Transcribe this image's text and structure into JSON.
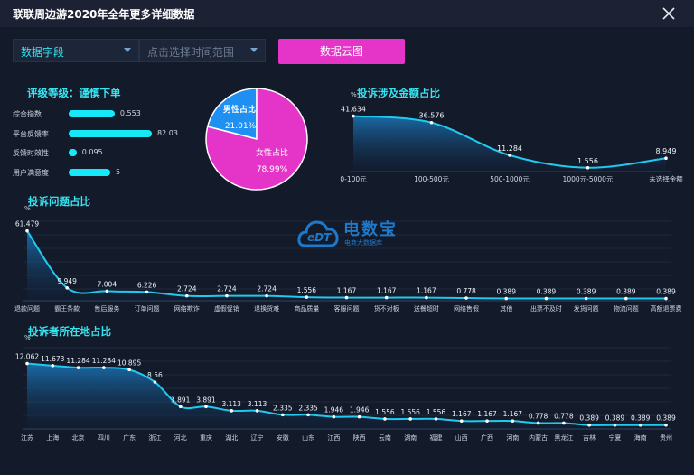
{
  "window": {
    "title": "联联周边游2020年全年更多详细数据"
  },
  "filters": {
    "field_select": "数据字段",
    "time_select_placeholder": "点击选择时间范围",
    "cloud_button": "数据云图"
  },
  "rating": {
    "title": "评级等级：谨慎下单",
    "items": [
      {
        "label": "综合指数",
        "value": "0.553",
        "fraction": 0.553
      },
      {
        "label": "平台反馈率",
        "value": "82.03",
        "fraction": 1.0
      },
      {
        "label": "反馈时效性",
        "value": "0.095",
        "fraction": 0.095
      },
      {
        "label": "用户满意度",
        "value": "5",
        "fraction": 0.5
      }
    ]
  },
  "gender": {
    "male_label": "男性占比",
    "male_value": "21.01%",
    "female_label": "女性占比",
    "female_value": "78.99%",
    "male_percent": 21.01,
    "female_percent": 78.99
  },
  "watermark": {
    "logo_text": "eDT",
    "brand": "电数宝",
    "sub": "电商大数据库"
  },
  "colors": {
    "accent": "#36e3f0",
    "button": "#e535c8",
    "pie_male": "#1f8ff2",
    "pie_female": "#e535c8"
  },
  "chart_data": [
    {
      "type": "area",
      "title": "投诉涉及金额占比",
      "ylabel": "%",
      "categories": [
        "0-100元",
        "100-500元",
        "500-1000元",
        "1000元-5000元",
        "未选择金额"
      ],
      "labels": [
        "41.634",
        "36.576",
        "11.284",
        "1.556",
        "8.949"
      ],
      "values": [
        41.634,
        36.576,
        11.284,
        1.556,
        8.949
      ]
    },
    {
      "type": "area",
      "title": "投诉问题占比",
      "ylabel": "%",
      "categories": [
        "退款问题",
        "霸王条款",
        "售后服务",
        "订单问题",
        "网络欺诈",
        "虚假促销",
        "退换货难",
        "商品质量",
        "客服问题",
        "货不对板",
        "送餐超时",
        "网络售假",
        "其他",
        "出票不及时",
        "发货问题",
        "物流问题",
        "高额退票费"
      ],
      "labels": [
        "61.479",
        "9.949",
        "7.004",
        "6.226",
        "2.724",
        "2.724",
        "2.724",
        "1.556",
        "1.167",
        "1.167",
        "1.167",
        "0.778",
        "0.389",
        "0.389",
        "0.389",
        "0.389",
        "0.389"
      ],
      "values": [
        61.479,
        9.949,
        7.004,
        6.226,
        2.724,
        2.724,
        2.724,
        1.556,
        1.167,
        1.167,
        1.167,
        0.778,
        0.389,
        0.389,
        0.389,
        0.389,
        0.389
      ]
    },
    {
      "type": "area",
      "title": "投诉者所在地占比",
      "ylabel": "%",
      "categories": [
        "江苏",
        "上海",
        "北京",
        "四川",
        "广东",
        "浙江",
        "河北",
        "重庆",
        "湖北",
        "辽宁",
        "安徽",
        "山东",
        "江西",
        "陕西",
        "云南",
        "湖南",
        "福建",
        "山西",
        "广西",
        "河南",
        "内蒙古",
        "黑龙江",
        "吉林",
        "宁夏",
        "海南",
        "贵州"
      ],
      "labels": [
        "12.062",
        "11.673",
        "11.284",
        "11.284",
        "10.895",
        "8.56",
        "3.891",
        "3.891",
        "3.113",
        "3.113",
        "2.335",
        "2.335",
        "1.946",
        "1.946",
        "1.556",
        "1.556",
        "1.556",
        "1.167",
        "1.167",
        "1.167",
        "0.778",
        "0.778",
        "0.389",
        "0.389",
        "0.389",
        "0.389"
      ],
      "values": [
        12.062,
        11.673,
        11.284,
        11.284,
        10.895,
        8.56,
        3.891,
        3.891,
        3.113,
        3.113,
        2.335,
        2.335,
        1.946,
        1.946,
        1.556,
        1.556,
        1.556,
        1.167,
        1.167,
        1.167,
        0.778,
        0.778,
        0.389,
        0.389,
        0.389,
        0.389
      ]
    }
  ]
}
